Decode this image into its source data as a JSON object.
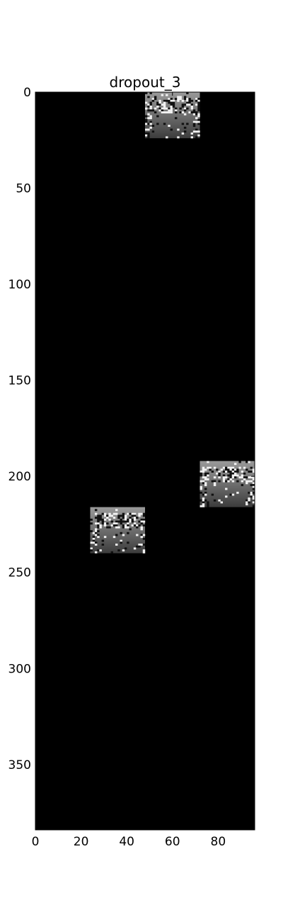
{
  "chart_data": {
    "type": "heatmap",
    "title": "dropout_3",
    "xlabel": "",
    "ylabel": "",
    "xlim": [
      0,
      96
    ],
    "ylim": [
      384,
      0
    ],
    "y_inverted": true,
    "grid": false,
    "colormap": "gray",
    "background_value": "black",
    "x_ticks": [
      0,
      20,
      40,
      60,
      80
    ],
    "y_ticks": [
      0,
      50,
      100,
      150,
      200,
      250,
      300,
      350
    ],
    "tiles": [
      {
        "x0": 48,
        "x1": 72,
        "y0": 0,
        "y1": 24
      },
      {
        "x0": 72,
        "x1": 96,
        "y0": 192,
        "y1": 216
      },
      {
        "x0": 24,
        "x1": 48,
        "y0": 216,
        "y1": 240
      }
    ]
  }
}
